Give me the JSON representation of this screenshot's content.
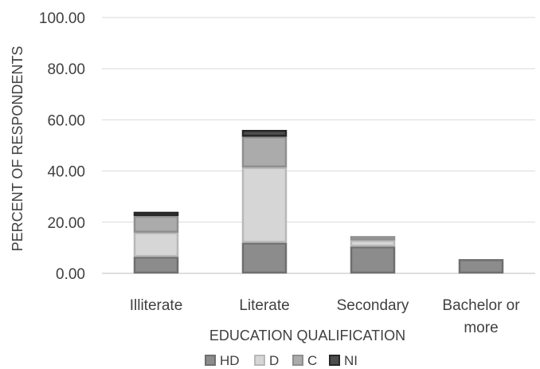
{
  "chart_data": {
    "type": "bar",
    "stacked": true,
    "categories": [
      "Illiterate",
      "Literate",
      "Secondary",
      "Bachelor or more"
    ],
    "series": [
      {
        "name": "HD",
        "values": [
          6.5,
          12.0,
          10.5,
          5.5
        ],
        "fill": "#8c8c8c",
        "stroke": "#6f6f6f"
      },
      {
        "name": "D",
        "values": [
          9.5,
          29.5,
          2.5,
          0.0
        ],
        "fill": "#d6d6d6",
        "stroke": "#b8b8b8"
      },
      {
        "name": "C",
        "values": [
          6.5,
          12.0,
          1.5,
          0.0
        ],
        "fill": "#ababab",
        "stroke": "#8f8f8f"
      },
      {
        "name": "NI",
        "values": [
          1.5,
          2.5,
          0.0,
          0.0
        ],
        "fill": "#4d4d4d",
        "stroke": "#262626"
      }
    ],
    "xlabel": "EDUCATION QUALIFICATION",
    "ylabel": "PERCENT OF RESPONDENTS",
    "ylim": [
      0,
      100
    ],
    "yticks": [
      "0.00",
      "20.00",
      "40.00",
      "60.00",
      "80.00",
      "100.00"
    ],
    "grid": true,
    "legend_position": "bottom"
  }
}
